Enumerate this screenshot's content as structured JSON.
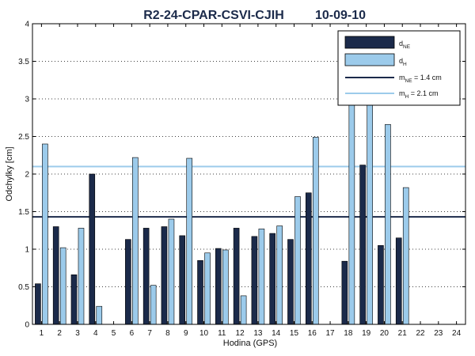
{
  "chart_data": {
    "type": "bar",
    "title_left": "R2-24-CPAR-CSVI-CJIH",
    "title_right": "10-09-10",
    "xlabel": "Hodina (GPS)",
    "ylabel": "Odchylky [cm]",
    "ylim": [
      0,
      4
    ],
    "yticks": [
      0,
      0.5,
      1,
      1.5,
      2,
      2.5,
      3,
      3.5,
      4
    ],
    "ytick_labels": [
      "0",
      "0.5",
      "1",
      "1.5",
      "2",
      "2.5",
      "3",
      "3.5",
      "4"
    ],
    "categories": [
      "1",
      "2",
      "3",
      "4",
      "5",
      "6",
      "7",
      "8",
      "9",
      "10",
      "11",
      "12",
      "13",
      "14",
      "15",
      "16",
      "17",
      "18",
      "19",
      "20",
      "21",
      "22",
      "23",
      "24"
    ],
    "grid": "horizontal dotted",
    "legend_position": "top-right",
    "series": [
      {
        "name_main": "d",
        "name_sub": "NE",
        "color": "#1b2a4a",
        "values": [
          0.54,
          1.3,
          0.66,
          2.0,
          null,
          1.13,
          1.28,
          1.3,
          1.18,
          0.85,
          1.01,
          1.28,
          1.17,
          1.21,
          1.13,
          1.75,
          null,
          0.84,
          2.12,
          1.05,
          1.15,
          null,
          null,
          null
        ]
      },
      {
        "name_main": "d",
        "name_sub": "H",
        "color": "#9ccbeb",
        "values": [
          2.4,
          1.02,
          1.28,
          0.24,
          null,
          2.22,
          0.52,
          1.4,
          2.21,
          0.95,
          0.99,
          0.38,
          1.27,
          1.31,
          1.7,
          2.49,
          null,
          3.26,
          3.21,
          2.66,
          1.82,
          null,
          null,
          null
        ]
      }
    ],
    "reference_lines": [
      {
        "label_main": "m",
        "label_sub": "NE",
        "label_rest": " = 1.4 cm",
        "value": 1.43,
        "color": "#1b2a4a"
      },
      {
        "label_main": "m",
        "label_sub": "H",
        "label_rest": "  = 2.1 cm",
        "value": 2.1,
        "color": "#9ccbeb"
      }
    ]
  }
}
